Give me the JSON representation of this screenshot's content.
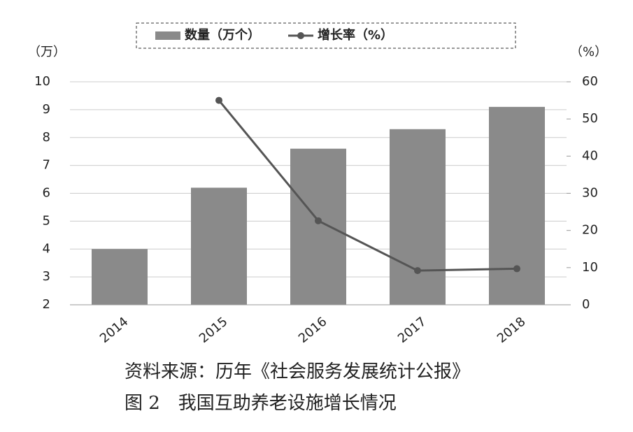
{
  "chart_data": {
    "type": "bar-line",
    "y_label": "（万）",
    "y2_label": "（%）",
    "categories": [
      "2014",
      "2015",
      "2016",
      "2017",
      "2018"
    ],
    "series": [
      {
        "name": "数量（万个）",
        "type": "bar",
        "color": "#8a8a8a",
        "values": [
          4.0,
          6.2,
          7.6,
          8.3,
          9.1
        ]
      },
      {
        "name": "增长率（%）",
        "type": "line",
        "axis": "y2",
        "color": "#555555",
        "values": [
          null,
          55,
          22.6,
          9.2,
          9.7
        ]
      }
    ],
    "ylim": [
      2,
      10
    ],
    "yticks": [
      2,
      3,
      4,
      5,
      6,
      7,
      8,
      9,
      10
    ],
    "y2lim": [
      0,
      60
    ],
    "y2ticks": [
      0,
      10,
      20,
      30,
      40,
      50,
      60
    ],
    "grid": true,
    "legend": "top",
    "source": "资料来源：历年《社会服务发展统计公报》",
    "caption": "图 2　我国互助养老设施增长情况"
  }
}
